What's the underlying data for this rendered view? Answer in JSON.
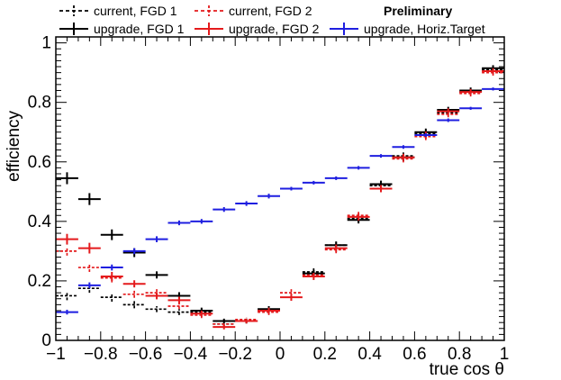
{
  "chart_data": {
    "type": "histogram-errorbar",
    "xlabel": "true cos θ",
    "ylabel": "efficiency",
    "xlim": [
      -1,
      1
    ],
    "ylim": [
      0,
      1.02
    ],
    "x_ticks": [
      "−1",
      "−0.8",
      "−0.6",
      "−0.4",
      "−0.2",
      "0",
      "0.2",
      "0.4",
      "0.6",
      "0.8",
      "1"
    ],
    "y_ticks": [
      "0",
      "0.2",
      "0.4",
      "0.6",
      "0.8",
      "1"
    ],
    "preliminary": "Preliminary",
    "bins": [
      [
        -1.0,
        -0.9
      ],
      [
        -0.9,
        -0.8
      ],
      [
        -0.8,
        -0.7
      ],
      [
        -0.7,
        -0.6
      ],
      [
        -0.6,
        -0.5
      ],
      [
        -0.5,
        -0.4
      ],
      [
        -0.4,
        -0.3
      ],
      [
        -0.3,
        -0.2
      ],
      [
        -0.2,
        -0.1
      ],
      [
        -0.1,
        0.0
      ],
      [
        0.0,
        0.1
      ],
      [
        0.1,
        0.2
      ],
      [
        0.2,
        0.3
      ],
      [
        0.3,
        0.4
      ],
      [
        0.4,
        0.5
      ],
      [
        0.5,
        0.6
      ],
      [
        0.6,
        0.7
      ],
      [
        0.7,
        0.8
      ],
      [
        0.8,
        0.9
      ],
      [
        0.9,
        1.0
      ]
    ],
    "series": [
      {
        "name": "current, FGD 1",
        "color": "#000000",
        "style": "dashed",
        "values": [
          0.15,
          0.175,
          0.145,
          0.12,
          0.105,
          0.095,
          0.095,
          0.055,
          0.065,
          0.1,
          null,
          0.23,
          0.32,
          0.41,
          0.52,
          0.62,
          0.695,
          0.765,
          0.835,
          0.91
        ],
        "errors": [
          0.015,
          0.015,
          0.015,
          0.012,
          0.01,
          0.01,
          0.01,
          0.008,
          0.008,
          0.01,
          null,
          0.012,
          0.012,
          0.012,
          0.012,
          0.012,
          0.012,
          0.01,
          0.01,
          0.01
        ]
      },
      {
        "name": "current, FGD 2",
        "color": "#e41a1c",
        "style": "dashed",
        "values": [
          0.3,
          0.245,
          0.21,
          0.155,
          0.16,
          0.115,
          0.085,
          0.055,
          0.07,
          0.095,
          0.16,
          0.22,
          0.305,
          0.42,
          0.51,
          0.61,
          0.685,
          0.76,
          0.83,
          0.9
        ],
        "errors": [
          0.015,
          0.015,
          0.015,
          0.012,
          0.012,
          0.01,
          0.01,
          0.008,
          0.008,
          0.01,
          0.012,
          0.012,
          0.012,
          0.012,
          0.012,
          0.012,
          0.012,
          0.01,
          0.01,
          0.01
        ]
      },
      {
        "name": "upgrade, FGD 1",
        "color": "#000000",
        "style": "solid",
        "values": [
          0.545,
          0.475,
          0.355,
          0.295,
          0.22,
          0.15,
          0.1,
          0.065,
          0.065,
          0.105,
          null,
          0.225,
          0.32,
          0.405,
          0.525,
          0.615,
          0.7,
          0.775,
          0.84,
          0.915
        ],
        "errors": [
          0.02,
          0.02,
          0.018,
          0.015,
          0.012,
          0.012,
          0.01,
          0.008,
          0.008,
          0.01,
          null,
          0.012,
          0.012,
          0.012,
          0.012,
          0.012,
          0.012,
          0.01,
          0.01,
          0.01
        ]
      },
      {
        "name": "upgrade, FGD 2",
        "color": "#e41a1c",
        "style": "solid",
        "values": [
          0.34,
          0.31,
          0.215,
          0.19,
          0.15,
          0.135,
          0.09,
          0.045,
          0.065,
          0.1,
          0.145,
          0.215,
          0.31,
          0.415,
          0.51,
          0.615,
          0.69,
          0.77,
          0.835,
          0.905
        ],
        "errors": [
          0.018,
          0.018,
          0.015,
          0.012,
          0.012,
          0.012,
          0.01,
          0.008,
          0.008,
          0.01,
          0.012,
          0.012,
          0.012,
          0.012,
          0.012,
          0.012,
          0.012,
          0.01,
          0.01,
          0.01
        ]
      },
      {
        "name": "upgrade, Horiz.Target",
        "color": "#1f1fe0",
        "style": "solid",
        "values": [
          0.095,
          0.185,
          0.245,
          0.3,
          0.34,
          0.395,
          0.4,
          0.44,
          0.46,
          0.485,
          0.51,
          0.53,
          0.545,
          0.58,
          0.62,
          0.65,
          0.69,
          0.74,
          0.78,
          0.845
        ],
        "errors": [
          0.008,
          0.01,
          0.01,
          0.01,
          0.01,
          0.008,
          0.008,
          0.008,
          0.008,
          0.008,
          0.006,
          0.006,
          0.006,
          0.006,
          0.006,
          0.006,
          0.006,
          0.006,
          0.005,
          0.005
        ]
      }
    ],
    "legend": {
      "placement": "top",
      "entries": [
        "current, FGD 1",
        "current, FGD 2",
        "upgrade, FGD 1",
        "upgrade, FGD 2",
        "upgrade, Horiz.Target"
      ]
    }
  }
}
